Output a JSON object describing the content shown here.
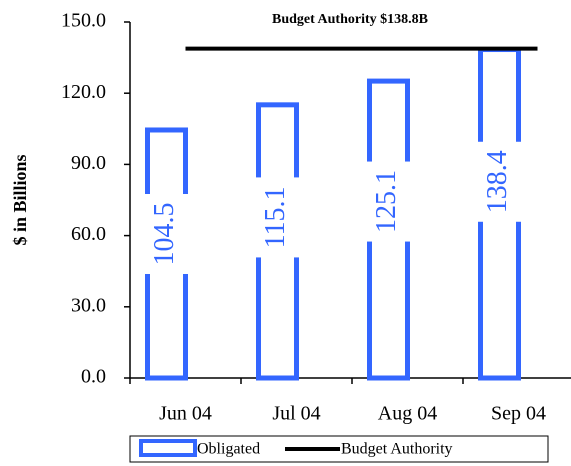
{
  "chart_data": {
    "type": "bar",
    "annotation": "Budget Authority $138.8B",
    "y_label": "$ in Billions",
    "categories": [
      "Jun 04",
      "Jul 04",
      "Aug 04",
      "Sep 04"
    ],
    "series": [
      {
        "name": "Obligated",
        "color": "#3366ff",
        "values": [
          104.5,
          115.1,
          125.1,
          138.4
        ]
      }
    ],
    "reference_line": {
      "name": "Budget Authority",
      "color": "#000000",
      "value": 138.8
    },
    "ylim": [
      0,
      150
    ],
    "yticks": [
      {
        "value": 0,
        "label": "0.0"
      },
      {
        "value": 30,
        "label": "30.0"
      },
      {
        "value": 60,
        "label": "60.0"
      },
      {
        "value": 90,
        "label": "90.0"
      },
      {
        "value": 120,
        "label": "120.0"
      },
      {
        "value": 150,
        "label": "150.0"
      }
    ],
    "legend": "bottom"
  }
}
